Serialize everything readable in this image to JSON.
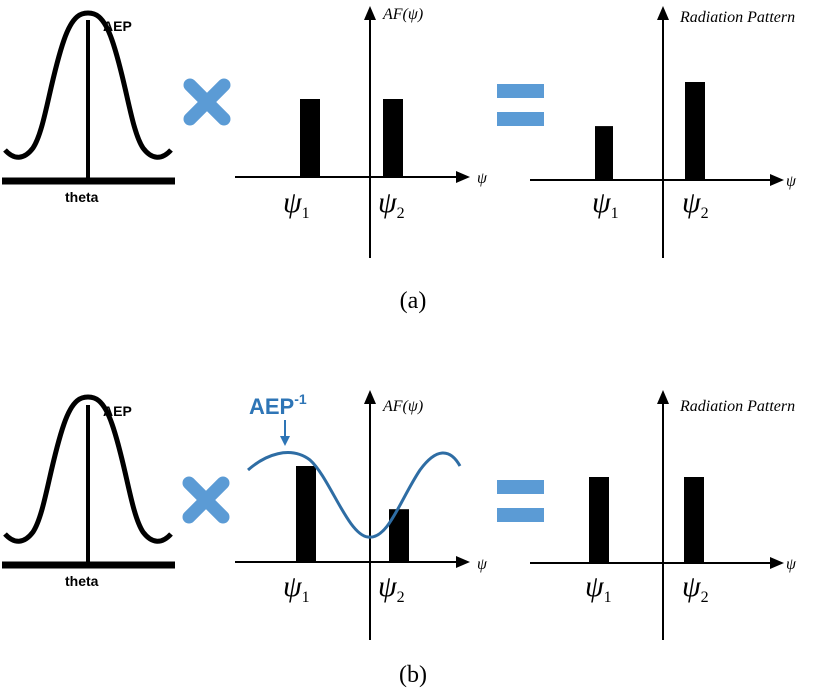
{
  "colors": {
    "ink": "#000000",
    "operator_blue": "#5b9bd5",
    "curve_blue": "#2e6da4",
    "aep_inverse_label": "#2e75b6"
  },
  "labels": {
    "aep": "AEP",
    "theta": "theta",
    "af_axis": "AF(ψ)",
    "psi_axis": "ψ",
    "radiation_pattern": "Radiation Pattern",
    "psi": "ψ",
    "sub_1": "1",
    "sub_2": "2",
    "aep_inverse_base": "AEP",
    "aep_inverse_exp": "-1"
  },
  "operators": {
    "multiply": "multiply-icon",
    "equals": "equals-icon"
  },
  "panels": [
    {
      "caption": "(a)",
      "af_bars": [
        1.0,
        1.0
      ],
      "radiation_bars": [
        0.55,
        1.0
      ],
      "inverse_curve": false
    },
    {
      "caption": "(b)",
      "af_bars": [
        1.0,
        0.55
      ],
      "radiation_bars": [
        1.0,
        1.0
      ],
      "inverse_curve": true
    }
  ]
}
